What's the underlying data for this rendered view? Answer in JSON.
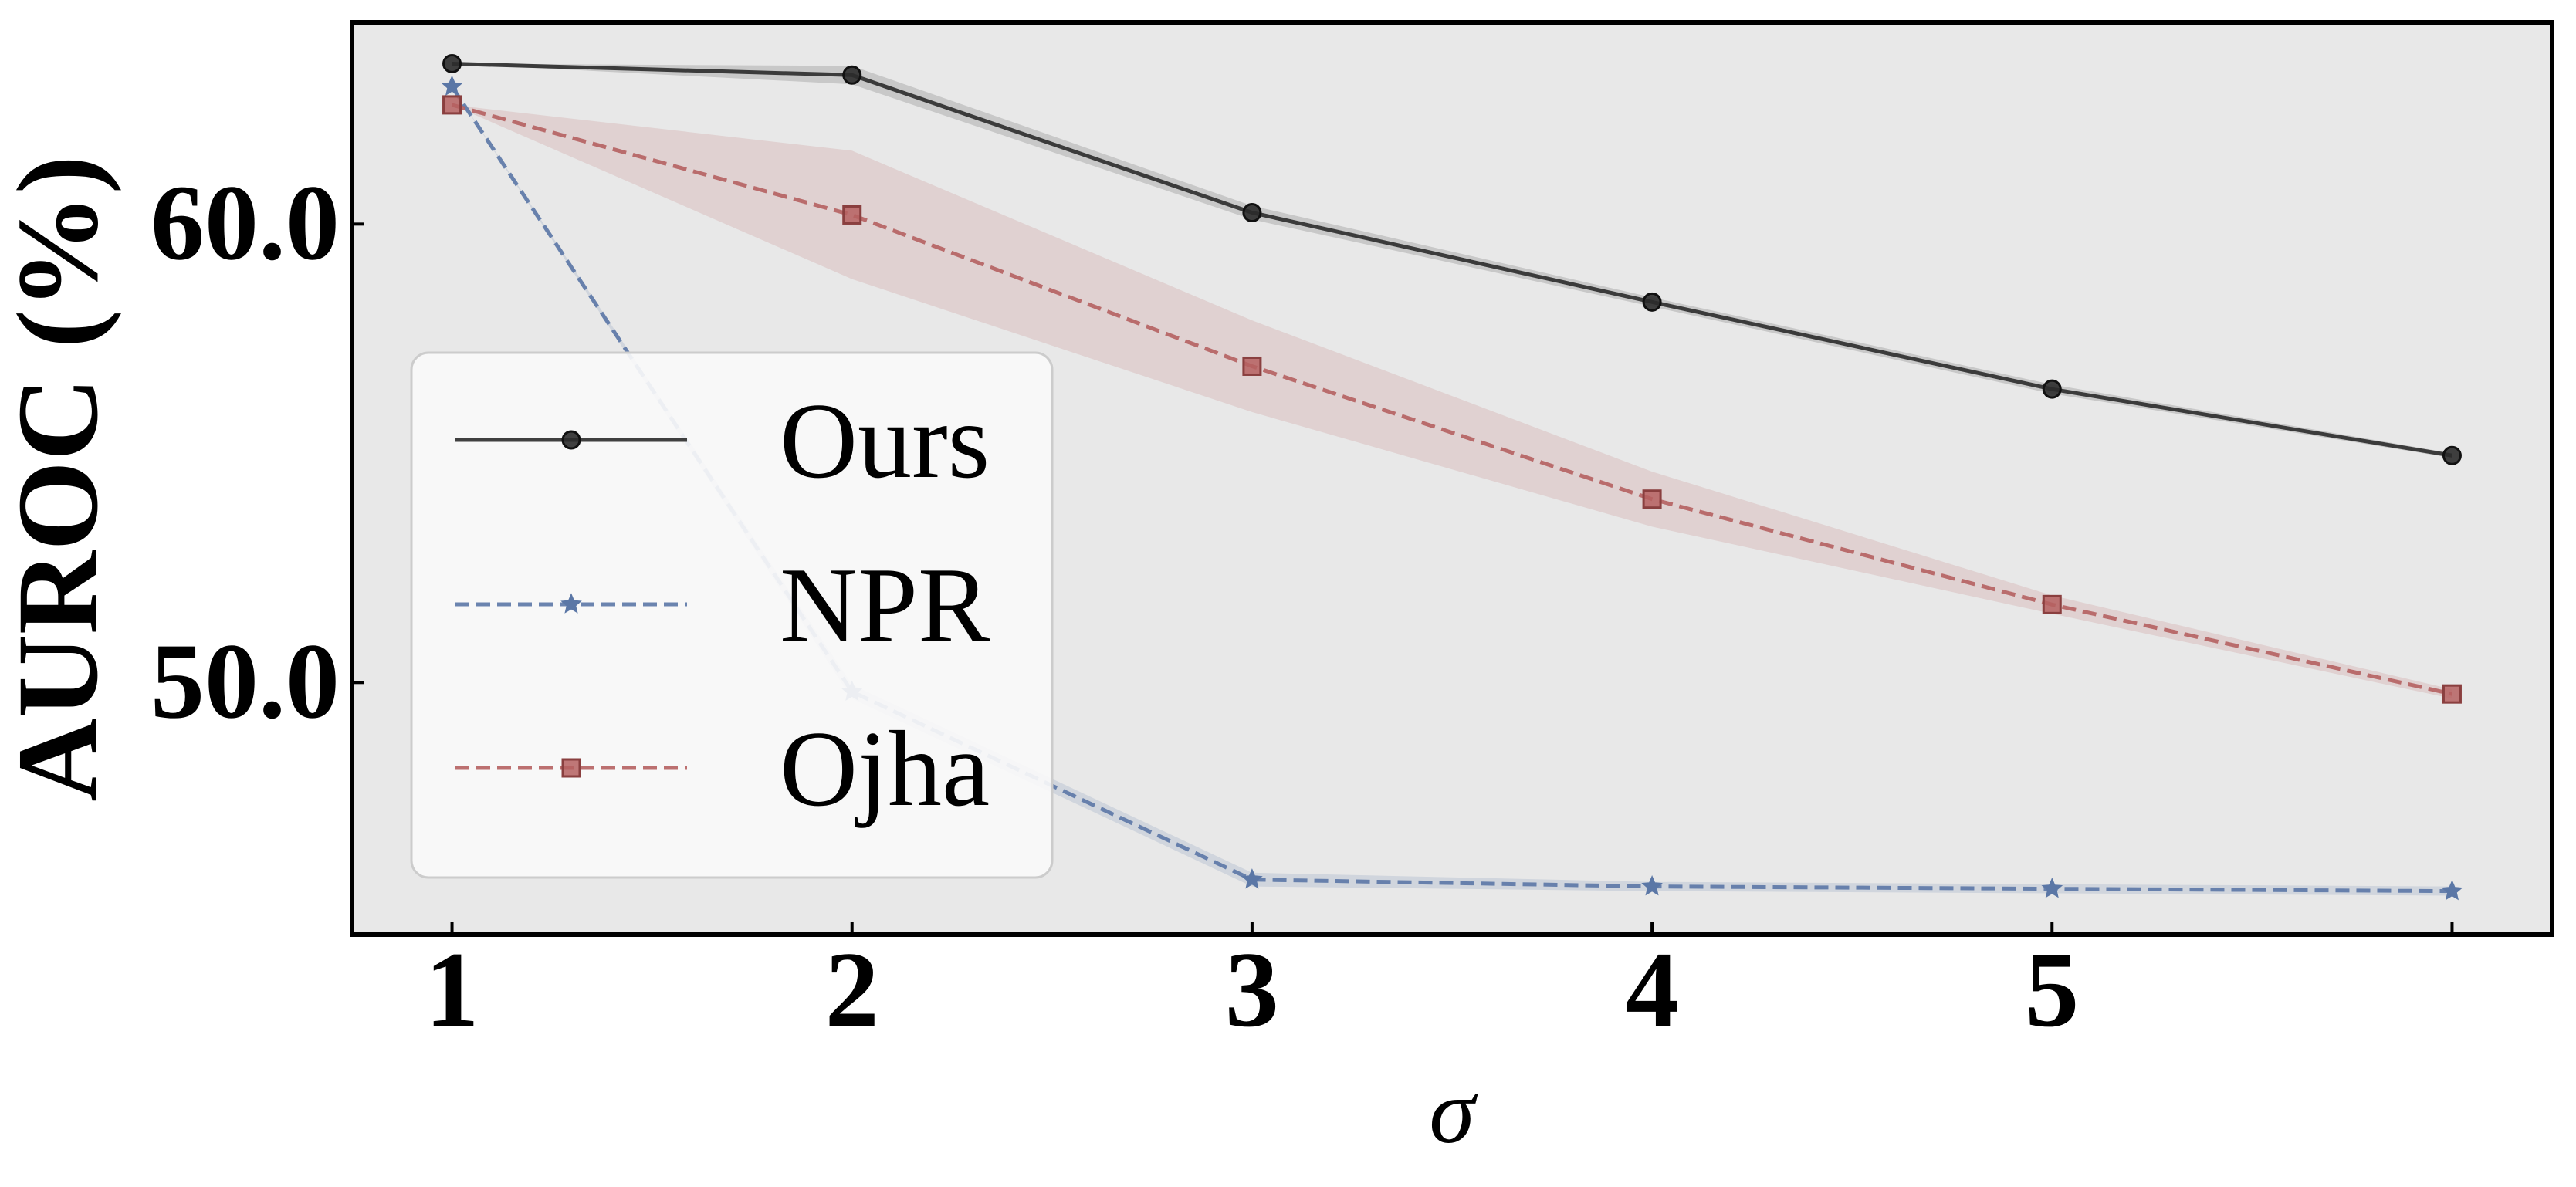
{
  "chart_data": {
    "type": "line",
    "title": "",
    "xlabel": "σ",
    "ylabel": "AUROC (%)",
    "x": [
      1,
      2,
      3,
      4,
      5,
      6
    ],
    "x_ticks": [
      {
        "value": 1,
        "label": "1"
      },
      {
        "value": 2,
        "label": "2"
      },
      {
        "value": 3,
        "label": "3"
      },
      {
        "value": 4,
        "label": "4"
      },
      {
        "value": 5,
        "label": "5"
      }
    ],
    "y_ticks": [
      {
        "value": 50,
        "label": "50.0"
      },
      {
        "value": 60,
        "label": "60.0"
      }
    ],
    "xlim": [
      0.75,
      6.25
    ],
    "ylim": [
      44.5,
      64.4
    ],
    "grid": false,
    "legend_position": "center-left",
    "series": [
      {
        "name": "Ours",
        "color": "#2b2b2b",
        "marker": "circle",
        "line_style": "solid",
        "values": [
          63.5,
          63.25,
          60.25,
          58.3,
          56.4,
          54.95
        ],
        "band_low": [
          63.5,
          63.05,
          60.1,
          58.2,
          56.3,
          54.9
        ],
        "band_high": [
          63.5,
          63.45,
          60.4,
          58.4,
          56.5,
          55.0
        ]
      },
      {
        "name": "NPR",
        "color": "#5b77a6",
        "marker": "star",
        "line_style": "dashed",
        "values": [
          63.0,
          49.8,
          45.7,
          45.55,
          45.5,
          45.45
        ],
        "band_low": [
          63.0,
          49.65,
          45.55,
          45.45,
          45.4,
          45.35
        ],
        "band_high": [
          63.0,
          49.95,
          45.85,
          45.65,
          45.6,
          45.55
        ]
      },
      {
        "name": "Ojha",
        "color": "#b56060",
        "marker": "square",
        "line_style": "dashed",
        "values": [
          62.6,
          60.2,
          56.9,
          54.0,
          51.7,
          49.75
        ],
        "band_low": [
          62.6,
          58.8,
          55.9,
          53.4,
          51.5,
          49.65
        ],
        "band_high": [
          62.6,
          61.6,
          57.9,
          54.6,
          51.9,
          49.85
        ]
      }
    ]
  }
}
